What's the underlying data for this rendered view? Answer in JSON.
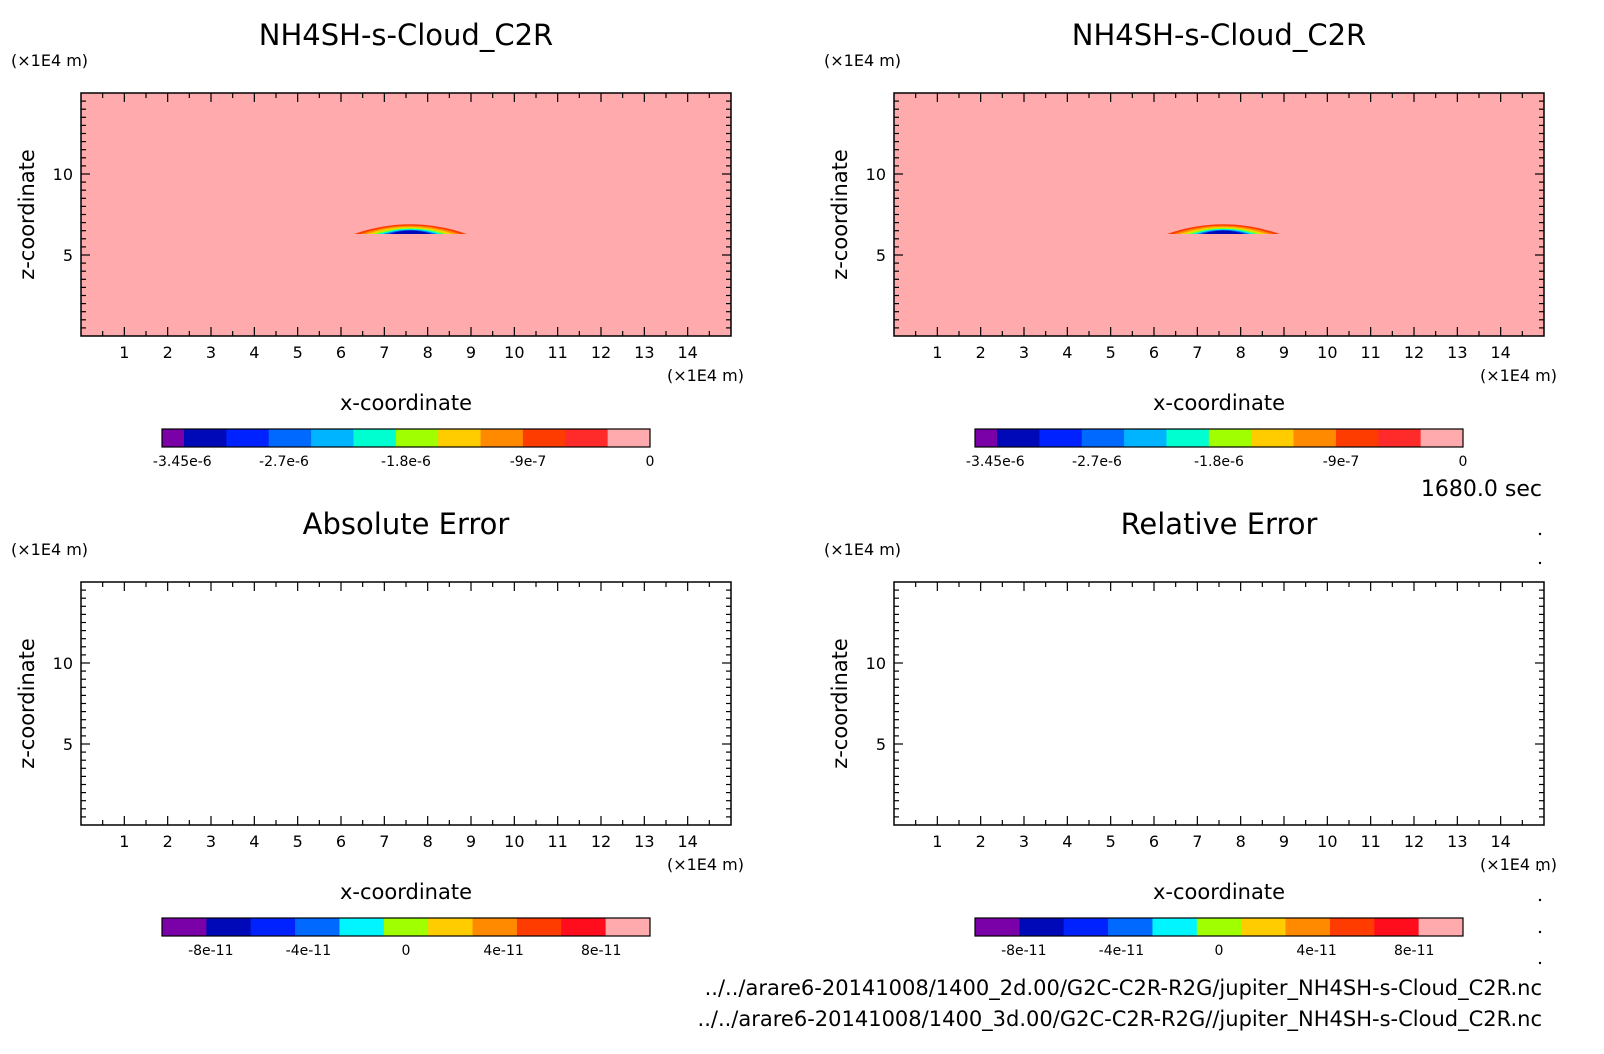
{
  "time_label": "1680.0 sec",
  "footer": {
    "line1": "../../arare6-20141008/1400_2d.00/G2C-C2R-R2G/jupiter_NH4SH-s-Cloud_C2R.nc",
    "line2": "../../arare6-20141008/1400_3d.00/G2C-C2R-R2G//jupiter_NH4SH-s-Cloud_C2R.nc"
  },
  "colors": {
    "field_background": "#ffabae",
    "scale_value": [
      "#7a00a8",
      "#0009b8",
      "#0022ff",
      "#0069ff",
      "#00b4ff",
      "#00ffd0",
      "#a0ff00",
      "#ffcc00",
      "#ff8a00",
      "#ff3c00",
      "#ff2a2a",
      "#ffabae"
    ],
    "scale_error": [
      "#7a00a8",
      "#0009b8",
      "#0022ff",
      "#0069ff",
      "#00f5ff",
      "#a0ff00",
      "#ffcc00",
      "#ff8a00",
      "#ff3c00",
      "#ff0d1c",
      "#ffabae"
    ]
  },
  "chart_data": [
    {
      "id": "panel-1",
      "type": "heatmap",
      "title": "NH4SH-s-Cloud_C2R",
      "xlabel": "x-coordinate",
      "ylabel": "z-coordinate",
      "x_unit": "(x1E4 m)",
      "y_unit": "(x1E4 m)",
      "xlim": [
        0,
        15
      ],
      "ylim": [
        0,
        15
      ],
      "x_ticks": [
        "1",
        "2",
        "3",
        "4",
        "5",
        "6",
        "7",
        "8",
        "9",
        "10",
        "11",
        "12",
        "13",
        "14"
      ],
      "y_ticks": [
        "5",
        "10"
      ],
      "field": "filled",
      "cloud": {
        "x_range": [
          6.3,
          8.9
        ],
        "z_range": [
          6.3,
          7.0
        ]
      },
      "colorbar": {
        "scale": "value",
        "ticks": [
          "-3.45e-6",
          "-2.7e-6",
          "-1.8e-6",
          "-9e-7",
          "0"
        ],
        "tick_values": [
          -3.45e-06,
          -2.7e-06,
          -1.8e-06,
          -9e-07,
          0
        ],
        "range": [
          -3.6e-06,
          0
        ]
      }
    },
    {
      "id": "panel-2",
      "type": "heatmap",
      "title": "NH4SH-s-Cloud_C2R",
      "xlabel": "x-coordinate",
      "ylabel": "z-coordinate",
      "x_unit": "(x1E4 m)",
      "y_unit": "(x1E4 m)",
      "xlim": [
        0,
        15
      ],
      "ylim": [
        0,
        15
      ],
      "x_ticks": [
        "1",
        "2",
        "3",
        "4",
        "5",
        "6",
        "7",
        "8",
        "9",
        "10",
        "11",
        "12",
        "13",
        "14"
      ],
      "y_ticks": [
        "5",
        "10"
      ],
      "field": "filled",
      "cloud": {
        "x_range": [
          6.3,
          8.9
        ],
        "z_range": [
          6.3,
          7.0
        ]
      },
      "colorbar": {
        "scale": "value",
        "ticks": [
          "-3.45e-6",
          "-2.7e-6",
          "-1.8e-6",
          "-9e-7",
          "0"
        ],
        "tick_values": [
          -3.45e-06,
          -2.7e-06,
          -1.8e-06,
          -9e-07,
          0
        ],
        "range": [
          -3.6e-06,
          0
        ]
      }
    },
    {
      "id": "panel-3",
      "type": "heatmap",
      "title": "Absolute Error",
      "xlabel": "x-coordinate",
      "ylabel": "z-coordinate",
      "x_unit": "(x1E4 m)",
      "y_unit": "(x1E4 m)",
      "xlim": [
        0,
        15
      ],
      "ylim": [
        0,
        15
      ],
      "x_ticks": [
        "1",
        "2",
        "3",
        "4",
        "5",
        "6",
        "7",
        "8",
        "9",
        "10",
        "11",
        "12",
        "13",
        "14"
      ],
      "y_ticks": [
        "5",
        "10"
      ],
      "field": "empty",
      "colorbar": {
        "scale": "error",
        "ticks": [
          "-8e-11",
          "-4e-11",
          "0",
          "4e-11",
          "8e-11"
        ],
        "tick_values": [
          -8e-11,
          -4e-11,
          0,
          4e-11,
          8e-11
        ],
        "range": [
          -1e-10,
          1e-10
        ]
      }
    },
    {
      "id": "panel-4",
      "type": "heatmap",
      "title": "Relative Error",
      "xlabel": "x-coordinate",
      "ylabel": "z-coordinate",
      "x_unit": "(x1E4 m)",
      "y_unit": "(x1E4 m)",
      "xlim": [
        0,
        15
      ],
      "ylim": [
        0,
        15
      ],
      "x_ticks": [
        "1",
        "2",
        "3",
        "4",
        "5",
        "6",
        "7",
        "8",
        "9",
        "10",
        "11",
        "12",
        "13",
        "14"
      ],
      "y_ticks": [
        "5",
        "10"
      ],
      "field": "empty",
      "colorbar": {
        "scale": "error",
        "ticks": [
          "-8e-11",
          "-4e-11",
          "0",
          "4e-11",
          "8e-11"
        ],
        "tick_values": [
          -8e-11,
          -4e-11,
          0,
          4e-11,
          8e-11
        ],
        "range": [
          -1e-10,
          1e-10
        ]
      }
    }
  ]
}
